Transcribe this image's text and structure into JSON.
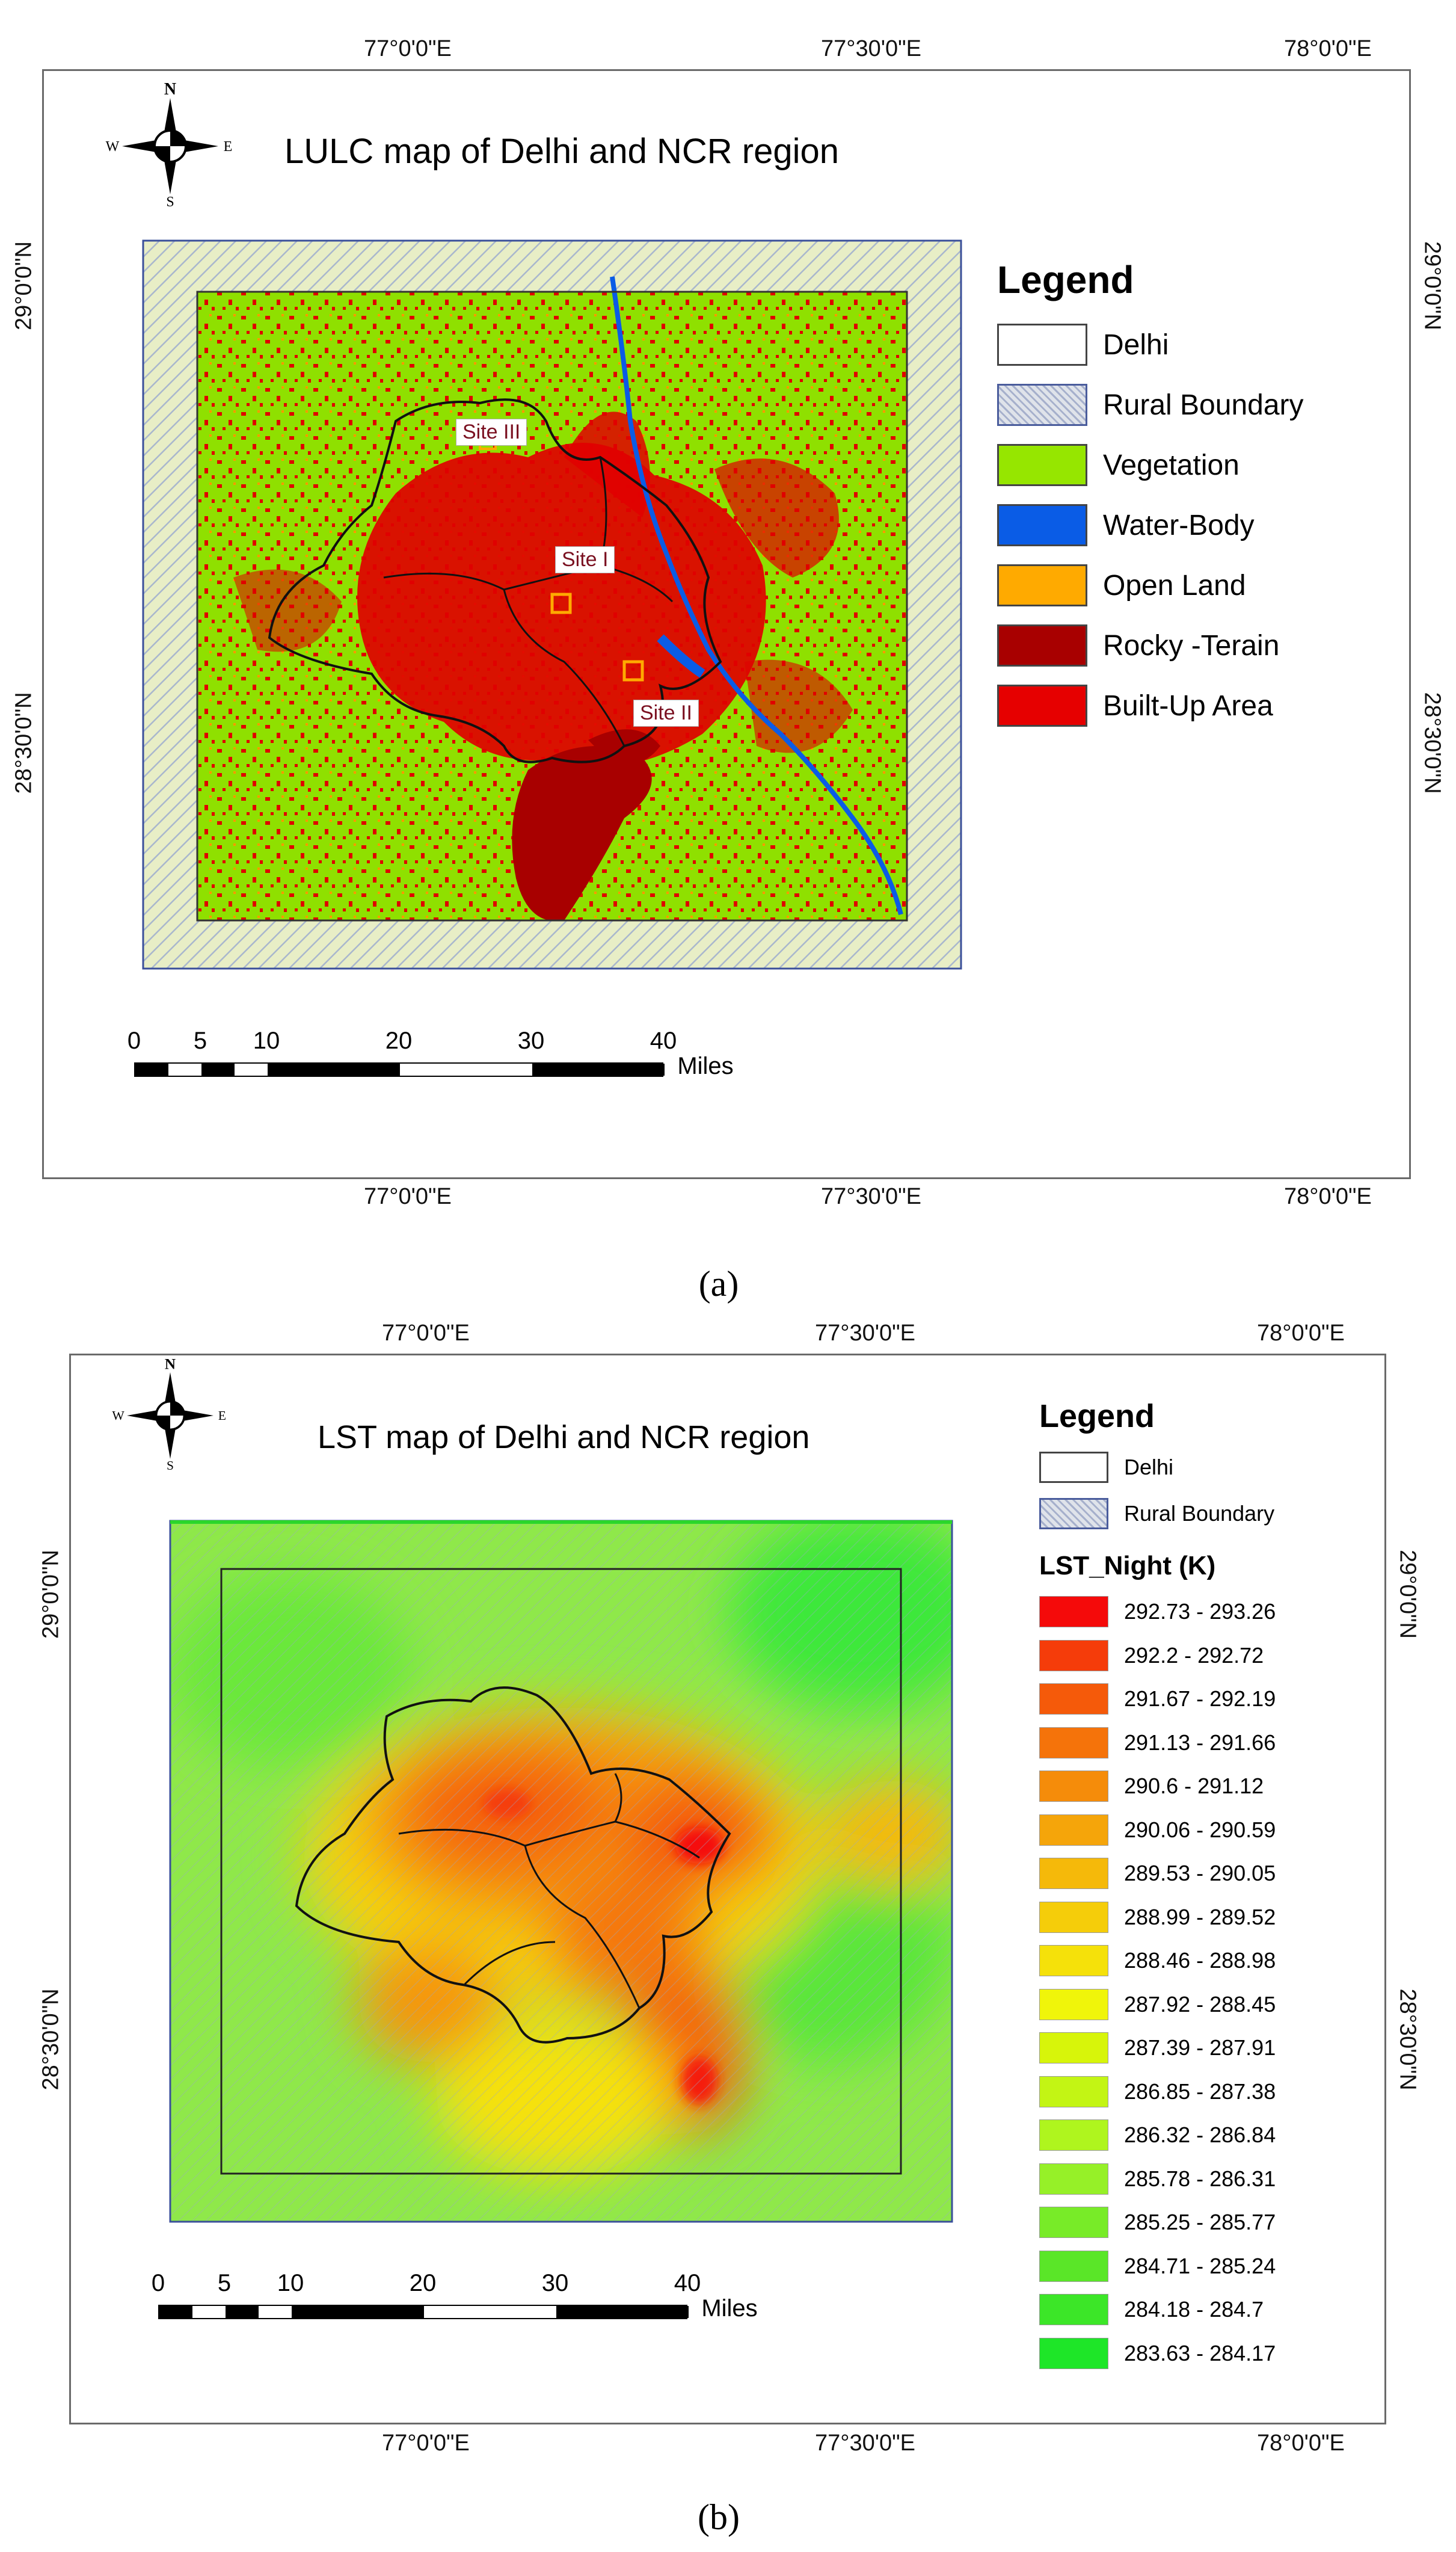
{
  "map_a": {
    "title": "LULC map of Delhi and NCR region",
    "caption": "(a)",
    "top_lon_labels": [
      "77°0'0\"E",
      "77°30'0\"E",
      "78°0'0\"E"
    ],
    "bottom_lon_labels": [
      "77°0'0\"E",
      "77°30'0\"E",
      "78°0'0\"E"
    ],
    "left_lat_labels": [
      "29°0'0\"N",
      "28°30'0\"N"
    ],
    "right_lat_labels": [
      "29°0'0\"N",
      "28°30'0\"N"
    ],
    "compass": {
      "n": "N",
      "s": "S",
      "e": "E",
      "w": "W"
    },
    "legend": {
      "title": "Legend",
      "items": [
        {
          "label": "Delhi",
          "color": "#ffffff"
        },
        {
          "label": "Rural Boundary",
          "color": "#dfe3ea"
        },
        {
          "label": "Vegetation",
          "color": "#96e600"
        },
        {
          "label": "Water-Body",
          "color": "#0a5ce6"
        },
        {
          "label": "Open Land",
          "color": "#ffaa00"
        },
        {
          "label": "Rocky -Terain",
          "color": "#a80000"
        },
        {
          "label": "Built-Up Area",
          "color": "#e60000"
        }
      ]
    },
    "sites": [
      "Site I",
      "Site II",
      "Site III"
    ],
    "scale": {
      "ticks": [
        "0",
        "5",
        "10",
        "20",
        "30",
        "40"
      ],
      "unit": "Miles"
    }
  },
  "map_b": {
    "title": "LST map of Delhi and NCR region",
    "caption": "(b)",
    "top_lon_labels": [
      "77°0'0\"E",
      "77°30'0\"E",
      "78°0'0\"E"
    ],
    "bottom_lon_labels": [
      "77°0'0\"E",
      "77°30'0\"E",
      "78°0'0\"E"
    ],
    "left_lat_labels": [
      "29°0'0\"N",
      "28°30'0\"N"
    ],
    "right_lat_labels": [
      "29°0'0\"N",
      "28°30'0\"N"
    ],
    "compass": {
      "n": "N",
      "s": "S",
      "e": "E",
      "w": "W"
    },
    "legend": {
      "title": "Legend",
      "boundaries": [
        {
          "label": "Delhi",
          "color": "#ffffff"
        },
        {
          "label": "Rural Boundary",
          "color": "#dfe3ea"
        }
      ],
      "lst_title": "LST_Night (K)",
      "classes": [
        {
          "label": "292.73 - 293.26",
          "color": "#f50a0a"
        },
        {
          "label": "292.2 - 292.72",
          "color": "#f53c0a"
        },
        {
          "label": "291.67 - 292.19",
          "color": "#f55a0a"
        },
        {
          "label": "291.13 - 291.66",
          "color": "#f5730a"
        },
        {
          "label": "290.6 - 291.12",
          "color": "#f58c0a"
        },
        {
          "label": "290.06 - 290.59",
          "color": "#f5a50a"
        },
        {
          "label": "289.53 - 290.05",
          "color": "#f5b90a"
        },
        {
          "label": "288.99 - 289.52",
          "color": "#f5cd0a"
        },
        {
          "label": "288.46 - 288.98",
          "color": "#f5e10a"
        },
        {
          "label": "287.92 - 288.45",
          "color": "#f0f50a"
        },
        {
          "label": "287.39 - 287.91",
          "color": "#d7f50a"
        },
        {
          "label": "286.85 - 287.38",
          "color": "#c3f514"
        },
        {
          "label": "286.32 - 286.84",
          "color": "#aff51e"
        },
        {
          "label": "285.78 - 286.31",
          "color": "#96f028"
        },
        {
          "label": "285.25 - 285.77",
          "color": "#78eb28"
        },
        {
          "label": "284.71 - 285.24",
          "color": "#5ae628"
        },
        {
          "label": "284.18 - 284.7",
          "color": "#3ce628"
        },
        {
          "label": "283.63 - 284.17",
          "color": "#1ee628"
        }
      ]
    },
    "scale": {
      "ticks": [
        "0",
        "5",
        "10",
        "20",
        "30",
        "40"
      ],
      "unit": "Miles"
    }
  }
}
